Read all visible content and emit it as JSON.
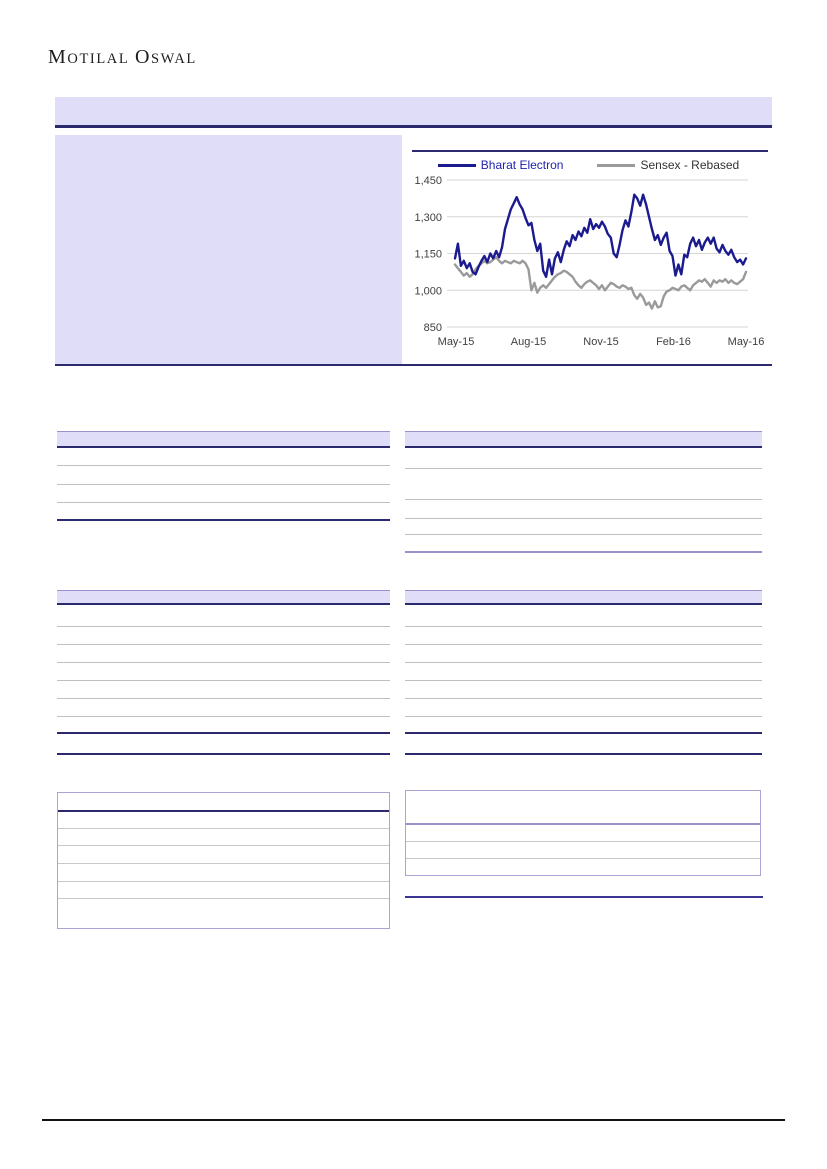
{
  "brand": {
    "m": "M",
    "otilal": "OTILAL",
    "o": "O",
    "swal": "SWAL"
  },
  "colors": {
    "accent_lavender": "#dfddf8",
    "accent_navy": "#2b2a6e",
    "table_rule_gray": "#bfbfbf",
    "table_rule_purple": "#9a93cb",
    "footer_black": "#111111"
  },
  "chart_data": {
    "type": "line",
    "title": "",
    "xlabel": "",
    "ylabel": "",
    "grid": true,
    "legend_position": "top",
    "ylim": [
      850,
      1450
    ],
    "y_ticks": [
      "1,450",
      "1,300",
      "1,150",
      "1,000",
      "850"
    ],
    "y_tick_values": [
      1450,
      1300,
      1150,
      1000,
      850
    ],
    "x_ticks": [
      "May-15",
      "Aug-15",
      "Nov-15",
      "Feb-16",
      "May-16"
    ],
    "series": [
      {
        "name": "Bharat Electron",
        "color": "#1b1b8f",
        "text_color": "#2222b0",
        "values": [
          1130,
          1190,
          1100,
          1120,
          1090,
          1110,
          1075,
          1065,
          1095,
          1120,
          1140,
          1115,
          1150,
          1130,
          1160,
          1135,
          1175,
          1250,
          1290,
          1330,
          1355,
          1380,
          1350,
          1330,
          1295,
          1265,
          1275,
          1205,
          1160,
          1190,
          1080,
          1055,
          1125,
          1065,
          1130,
          1155,
          1115,
          1165,
          1200,
          1180,
          1225,
          1205,
          1240,
          1220,
          1255,
          1235,
          1290,
          1250,
          1270,
          1255,
          1280,
          1260,
          1230,
          1215,
          1150,
          1135,
          1185,
          1245,
          1285,
          1260,
          1320,
          1390,
          1375,
          1345,
          1390,
          1350,
          1300,
          1250,
          1205,
          1225,
          1185,
          1215,
          1235,
          1160,
          1140,
          1060,
          1105,
          1065,
          1145,
          1135,
          1190,
          1215,
          1180,
          1205,
          1165,
          1195,
          1215,
          1190,
          1215,
          1170,
          1155,
          1185,
          1160,
          1145,
          1165,
          1135,
          1115,
          1125,
          1105,
          1130
        ]
      },
      {
        "name": "Sensex - Rebased",
        "color": "#9a9a9a",
        "text_color": "#333333",
        "values": [
          1105,
          1090,
          1075,
          1060,
          1070,
          1055,
          1065,
          1085,
          1100,
          1110,
          1120,
          1110,
          1115,
          1125,
          1135,
          1120,
          1110,
          1120,
          1115,
          1110,
          1120,
          1115,
          1110,
          1120,
          1110,
          1085,
          1000,
          1030,
          990,
          1010,
          1020,
          1010,
          1025,
          1040,
          1055,
          1065,
          1070,
          1080,
          1075,
          1065,
          1055,
          1035,
          1020,
          1010,
          1025,
          1035,
          1040,
          1030,
          1020,
          1005,
          1020,
          1000,
          1015,
          1030,
          1025,
          1015,
          1010,
          1020,
          1015,
          1005,
          1010,
          980,
          965,
          985,
          970,
          940,
          950,
          925,
          955,
          930,
          935,
          975,
          995,
          1000,
          1010,
          1005,
          1000,
          1015,
          1020,
          1010,
          1000,
          1020,
          1030,
          1040,
          1035,
          1045,
          1030,
          1015,
          1040,
          1030,
          1040,
          1035,
          1045,
          1030,
          1040,
          1030,
          1025,
          1035,
          1045,
          1075
        ]
      }
    ]
  }
}
